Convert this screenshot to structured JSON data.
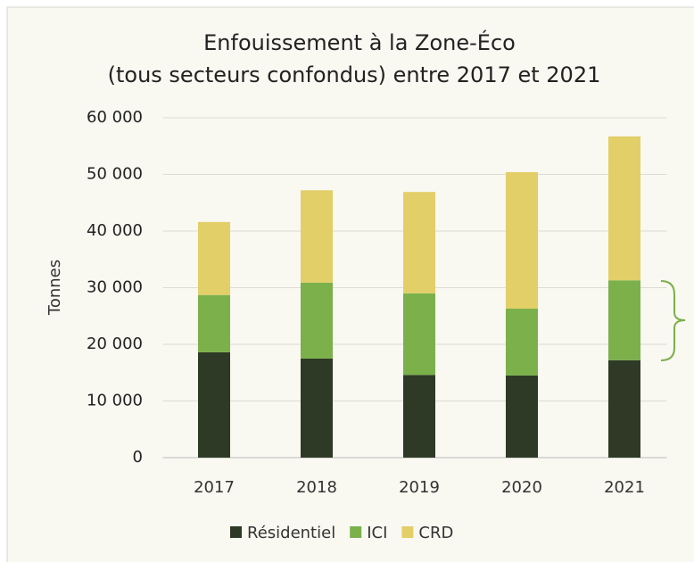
{
  "chart_data": {
    "type": "bar",
    "stacked": true,
    "title": [
      "Enfouissement à la Zone-Éco",
      "(tous secteurs confondus) entre 2017 et 2021"
    ],
    "y_label": "Tonnes",
    "categories": [
      "2017",
      "2018",
      "2019",
      "2020",
      "2021"
    ],
    "series": [
      {
        "name": "Résidentiel",
        "color": "#2e3a25",
        "values": [
          18600,
          17500,
          14600,
          14500,
          17200
        ]
      },
      {
        "name": "ICI",
        "color": "#7bb04b",
        "values": [
          10100,
          13400,
          14400,
          11800,
          14100
        ]
      },
      {
        "name": "CRD",
        "color": "#e2cf68",
        "values": [
          12900,
          16300,
          17900,
          24100,
          25400
        ]
      }
    ],
    "ylim": [
      0,
      60000
    ],
    "yticks": [
      0,
      {
        "value": 10000,
        "label": "10 000"
      },
      {
        "value": 20000,
        "label": "20 000"
      },
      {
        "value": 30000,
        "label": "30 000"
      },
      {
        "value": 40000,
        "label": "40 000"
      },
      {
        "value": 50000,
        "label": "50 000"
      },
      {
        "value": 60000,
        "label": "60 000"
      }
    ],
    "grid": true,
    "legend": "bottom"
  }
}
